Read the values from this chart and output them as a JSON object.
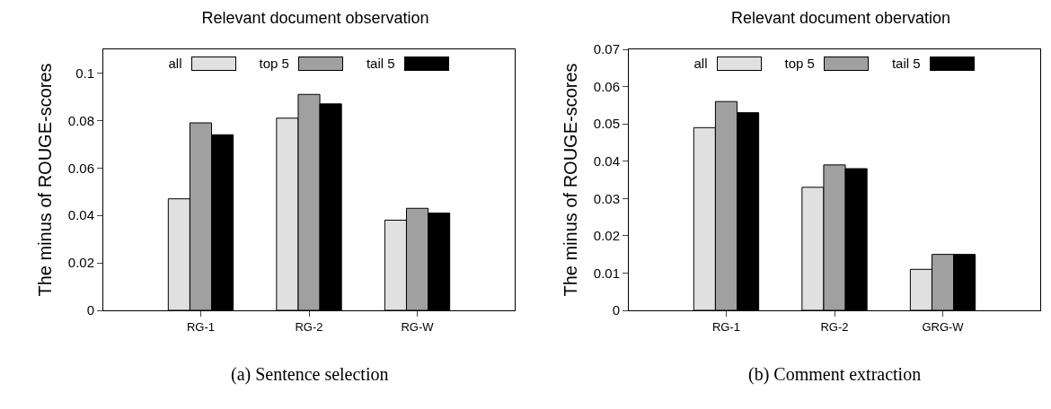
{
  "chart_data": [
    {
      "type": "bar",
      "title": "Relevant document observation",
      "ylabel": "The minus of ROUGE-scores",
      "categories": [
        "RG-1",
        "RG-2",
        "RG-W"
      ],
      "series": [
        {
          "name": "all",
          "color": "#e0e0e0",
          "values": [
            0.047,
            0.081,
            0.038
          ]
        },
        {
          "name": "top 5",
          "color": "#a0a0a0",
          "values": [
            0.079,
            0.091,
            0.043
          ]
        },
        {
          "name": "tail 5",
          "color": "#000000",
          "values": [
            0.074,
            0.087,
            0.041
          ]
        }
      ],
      "ylim": [
        0,
        0.11
      ],
      "yticks": [
        0,
        0.02,
        0.04,
        0.06,
        0.08,
        0.1
      ],
      "grid": false,
      "legend": "top",
      "annotations": [
        "(a) Sentence selection"
      ]
    },
    {
      "type": "bar",
      "title": "Relevant document obervation",
      "ylabel": "The minus of ROUGE-scores",
      "categories": [
        "RG-1",
        "RG-2",
        "GRG-W"
      ],
      "series": [
        {
          "name": "all",
          "color": "#e0e0e0",
          "values": [
            0.049,
            0.033,
            0.011
          ]
        },
        {
          "name": "top 5",
          "color": "#a0a0a0",
          "values": [
            0.056,
            0.039,
            0.015
          ]
        },
        {
          "name": "tail 5",
          "color": "#000000",
          "values": [
            0.053,
            0.038,
            0.015
          ]
        }
      ],
      "ylim": [
        0,
        0.07
      ],
      "yticks": [
        0,
        0.01,
        0.02,
        0.03,
        0.04,
        0.05,
        0.06,
        0.07
      ],
      "grid": false,
      "legend": "top",
      "annotations": [
        "(b) Comment extraction"
      ]
    }
  ]
}
